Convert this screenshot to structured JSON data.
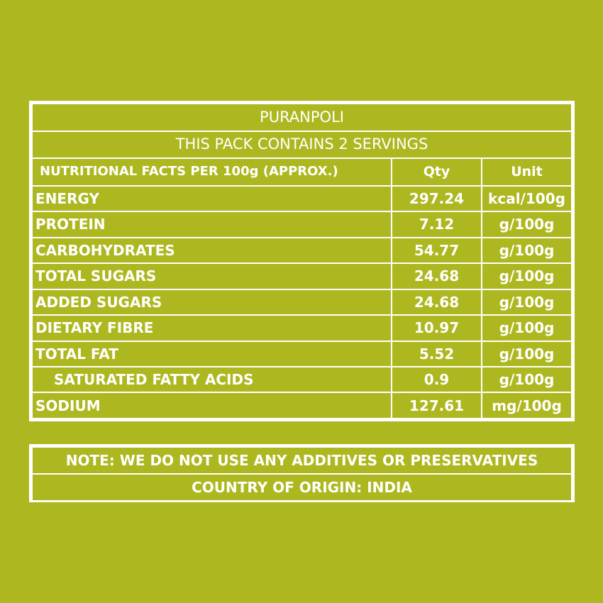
{
  "label": {
    "product_name": "PURANPOLI",
    "servings_text": "THIS PACK CONTAINS 2 SERVINGS",
    "columns": {
      "nutrient": "NUTRITIONAL FACTS PER 100g (APPROX.)",
      "qty": "Qty",
      "unit": "Unit"
    },
    "rows": [
      {
        "name": "ENERGY",
        "qty": "297.24",
        "unit": "kcal/100g"
      },
      {
        "name": "PROTEIN",
        "qty": "7.12",
        "unit": "g/100g"
      },
      {
        "name": "CARBOHYDRATES",
        "qty": "54.77",
        "unit": "g/100g"
      },
      {
        "name": "TOTAL SUGARS",
        "qty": "24.68",
        "unit": "g/100g"
      },
      {
        "name": "ADDED SUGARS",
        "qty": "24.68",
        "unit": "g/100g"
      },
      {
        "name": "DIETARY FIBRE",
        "qty": "10.97",
        "unit": "g/100g"
      },
      {
        "name": "TOTAL FAT",
        "qty": "5.52",
        "unit": "g/100g"
      },
      {
        "name": "SATURATED FATTY ACIDS",
        "qty": "0.9",
        "unit": "g/100g"
      },
      {
        "name": "SODIUM",
        "qty": "127.61",
        "unit": "mg/100g"
      }
    ],
    "note": "NOTE: WE DO NOT USE ANY ADDITIVES OR PRESERVATIVES",
    "origin": "COUNTRY OF ORIGIN: INDIA"
  },
  "colors": {
    "background": "#adb820",
    "text": "#ffffff",
    "border": "#ffffff"
  }
}
